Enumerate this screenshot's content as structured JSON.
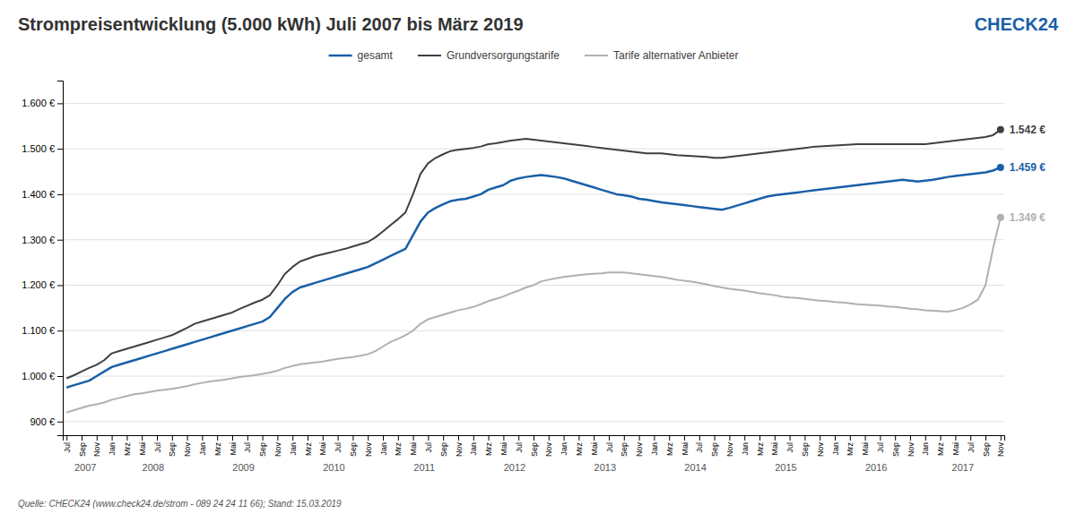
{
  "chart_data": {
    "type": "line",
    "title": "Strompreisentwicklung (5.000 kWh) Juli 2007 bis März 2019",
    "source": "Quelle: CHECK24 (www.check24.de/strom - 089 24 24 11 66); Stand: 15.03.2019",
    "logo": {
      "text": "CHECK24",
      "color": "#1a5fa8"
    },
    "grid": true,
    "legend": "top",
    "ylim": [
      870,
      1650
    ],
    "yticks": [
      {
        "value": 900,
        "label": "900 €"
      },
      {
        "value": 1000,
        "label": "1.000 €"
      },
      {
        "value": 1100,
        "label": "1.100 €"
      },
      {
        "value": 1200,
        "label": "1.200 €"
      },
      {
        "value": 1300,
        "label": "1.300 €"
      },
      {
        "value": 1400,
        "label": "1.400 €"
      },
      {
        "value": 1500,
        "label": "1.500 €"
      },
      {
        "value": 1600,
        "label": "1.600 €"
      }
    ],
    "categories": [
      "Jul",
      null,
      "Sep",
      null,
      "Nov",
      null,
      "Jan",
      null,
      "Mrz",
      null,
      "Mai",
      null,
      "Jul",
      null,
      "Sep",
      null,
      "Nov",
      null,
      "Jan",
      null,
      "Mrz",
      null,
      "Mai",
      null,
      "Jul",
      null,
      "Sep",
      null,
      "Nov",
      null,
      "Jan",
      null,
      "Mrz",
      null,
      "Mai",
      null,
      "Jul",
      null,
      "Sep",
      null,
      "Nov",
      null,
      "Jan",
      null,
      "Mrz",
      null,
      "Mai",
      null,
      "Jul",
      null,
      "Sep",
      null,
      "Nov",
      null,
      "Jan",
      null,
      "Mrz",
      null,
      "Mai",
      null,
      "Jul",
      null,
      "Sep",
      null,
      "Nov",
      null,
      "Jan",
      null,
      "Mrz",
      null,
      "Mai",
      null,
      "Jul",
      null,
      "Sep",
      null,
      "Nov",
      null,
      "Jan",
      null,
      "Mrz",
      null,
      "Mai",
      null,
      "Jul",
      null,
      "Sep",
      null,
      "Nov",
      null,
      "Jan",
      null,
      "Mrz",
      null,
      "Mai",
      null,
      "Jul",
      null,
      "Sep",
      null,
      "Nov",
      null,
      "Jan",
      null,
      "Mrz",
      null,
      "Mai",
      null,
      "Jul",
      null,
      "Sep",
      null,
      "Nov",
      null,
      "Jan",
      null,
      "Mrz",
      null,
      "Mai",
      null,
      "Jul",
      null,
      "Sep",
      null,
      "Nov"
    ],
    "series": [
      {
        "name": "gesamt",
        "color": "#1a5fa8",
        "values": [
          975,
          980,
          985,
          990,
          1000,
          1010,
          1020,
          1025,
          1030,
          1035,
          1040,
          1045,
          1050,
          1055,
          1060,
          1065,
          1070,
          1075,
          1080,
          1085,
          1090,
          1095,
          1100,
          1105,
          1110,
          1115,
          1120,
          1130,
          1150,
          1170,
          1185,
          1195,
          1200,
          1205,
          1210,
          1215,
          1220,
          1225,
          1230,
          1235,
          1240,
          1248,
          1256,
          1264,
          1272,
          1280,
          1310,
          1340,
          1360,
          1370,
          1378,
          1385,
          1388,
          1390,
          1395,
          1400,
          1410,
          1415,
          1420,
          1430,
          1435,
          1438,
          1440,
          1442,
          1440,
          1438,
          1435,
          1430,
          1425,
          1420,
          1415,
          1410,
          1405,
          1400,
          1398,
          1395,
          1390,
          1388,
          1385,
          1382,
          1380,
          1378,
          1376,
          1374,
          1372,
          1370,
          1368,
          1366,
          1370,
          1375,
          1380,
          1385,
          1390,
          1395,
          1398,
          1400,
          1402,
          1404,
          1406,
          1408,
          1410,
          1412,
          1414,
          1416,
          1418,
          1420,
          1422,
          1424,
          1426,
          1428,
          1430,
          1432,
          1430,
          1428,
          1430,
          1432,
          1435,
          1438,
          1440,
          1442,
          1444,
          1446,
          1448,
          1452,
          1459
        ]
      },
      {
        "name": "Grundversorgungstarife",
        "color": "#404040",
        "values": [
          995,
          1002,
          1010,
          1018,
          1025,
          1035,
          1050,
          1055,
          1060,
          1065,
          1070,
          1075,
          1080,
          1085,
          1090,
          1098,
          1106,
          1115,
          1120,
          1125,
          1130,
          1135,
          1140,
          1148,
          1155,
          1162,
          1168,
          1178,
          1200,
          1225,
          1240,
          1252,
          1258,
          1264,
          1268,
          1272,
          1276,
          1280,
          1285,
          1290,
          1295,
          1305,
          1318,
          1332,
          1345,
          1360,
          1400,
          1445,
          1468,
          1480,
          1488,
          1495,
          1498,
          1500,
          1502,
          1505,
          1510,
          1512,
          1515,
          1518,
          1520,
          1522,
          1520,
          1518,
          1516,
          1514,
          1512,
          1510,
          1508,
          1506,
          1504,
          1502,
          1500,
          1498,
          1496,
          1494,
          1492,
          1490,
          1490,
          1490,
          1488,
          1486,
          1485,
          1484,
          1483,
          1482,
          1480,
          1480,
          1482,
          1484,
          1486,
          1488,
          1490,
          1492,
          1494,
          1496,
          1498,
          1500,
          1502,
          1504,
          1505,
          1506,
          1507,
          1508,
          1509,
          1510,
          1510,
          1510,
          1510,
          1510,
          1510,
          1510,
          1510,
          1510,
          1510,
          1512,
          1514,
          1516,
          1518,
          1520,
          1522,
          1524,
          1526,
          1530,
          1542
        ]
      },
      {
        "name": "Tarife alternativer Anbieter",
        "color": "#b0b0b0",
        "values": [
          920,
          925,
          930,
          935,
          938,
          942,
          948,
          952,
          956,
          960,
          962,
          965,
          968,
          970,
          972,
          975,
          978,
          982,
          985,
          988,
          990,
          992,
          995,
          998,
          1000,
          1002,
          1005,
          1008,
          1012,
          1018,
          1022,
          1026,
          1028,
          1030,
          1032,
          1035,
          1038,
          1040,
          1042,
          1045,
          1048,
          1055,
          1065,
          1075,
          1082,
          1090,
          1100,
          1115,
          1125,
          1130,
          1135,
          1140,
          1145,
          1148,
          1152,
          1158,
          1165,
          1170,
          1175,
          1182,
          1188,
          1195,
          1200,
          1208,
          1212,
          1215,
          1218,
          1220,
          1222,
          1224,
          1225,
          1226,
          1228,
          1228,
          1228,
          1226,
          1224,
          1222,
          1220,
          1218,
          1215,
          1212,
          1210,
          1208,
          1205,
          1202,
          1198,
          1195,
          1192,
          1190,
          1188,
          1185,
          1182,
          1180,
          1178,
          1175,
          1173,
          1172,
          1170,
          1168,
          1166,
          1165,
          1163,
          1162,
          1160,
          1158,
          1157,
          1156,
          1155,
          1153,
          1152,
          1150,
          1148,
          1147,
          1145,
          1144,
          1143,
          1142,
          1145,
          1150,
          1158,
          1168,
          1200,
          1280,
          1349
        ]
      }
    ],
    "annotations": [
      {
        "text": "2007",
        "x": [
          0,
          5
        ]
      },
      {
        "text": "2008",
        "x": [
          6,
          17
        ]
      },
      {
        "text": "2009",
        "x": [
          18,
          29
        ]
      },
      {
        "text": "2010",
        "x": [
          30,
          41
        ]
      },
      {
        "text": "2011",
        "x": [
          42,
          53
        ]
      },
      {
        "text": "2012",
        "x": [
          54,
          65
        ]
      },
      {
        "text": "2013",
        "x": [
          66,
          77
        ]
      },
      {
        "text": "2014",
        "x": [
          78,
          89
        ]
      },
      {
        "text": "2015",
        "x": [
          90,
          101
        ]
      },
      {
        "text": "2016",
        "x": [
          102,
          113
        ]
      },
      {
        "text": "2017",
        "x": [
          114,
          124
        ]
      },
      {
        "text": "1.542 €",
        "x": 124,
        "y": 1542,
        "color": "#404040"
      },
      {
        "text": "1.459 €",
        "x": 124,
        "y": 1459,
        "color": "#1a5fa8"
      },
      {
        "text": "1.349 €",
        "x": 124,
        "y": 1349,
        "color": "#b0b0b0"
      }
    ]
  }
}
